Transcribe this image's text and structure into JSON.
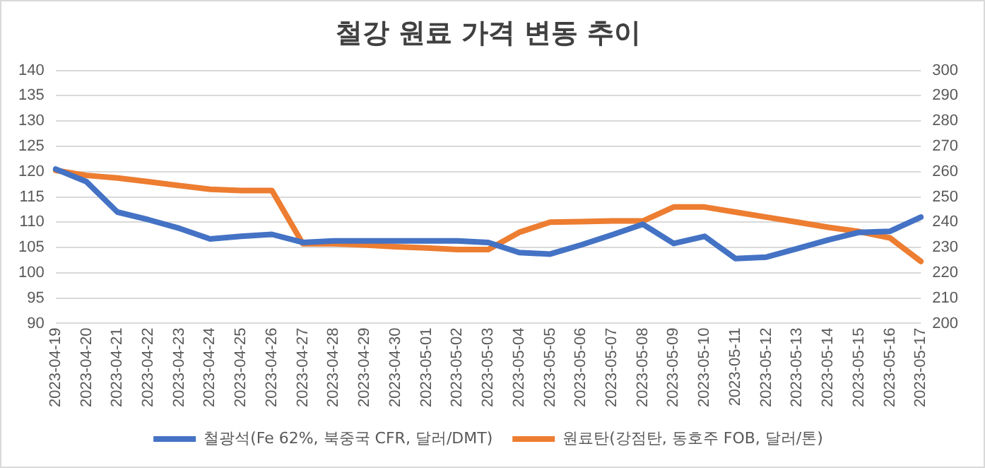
{
  "chart_data": {
    "type": "line",
    "title": "철강 원료 가격 변동 추이",
    "categories": [
      "2023-04-19",
      "2023-04-20",
      "2023-04-21",
      "2023-04-22",
      "2023-04-23",
      "2023-04-24",
      "2023-04-25",
      "2023-04-26",
      "2023-04-27",
      "2023-04-28",
      "2023-04-29",
      "2023-04-30",
      "2023-05-01",
      "2023-05-02",
      "2023-05-03",
      "2023-05-04",
      "2023-05-05",
      "2023-05-06",
      "2023-05-07",
      "2023-05-08",
      "2023-05-09",
      "2023-05-10",
      "2023-05-11",
      "2023-05-12",
      "2023-05-13",
      "2023-05-14",
      "2023-05-15",
      "2023-05-16",
      "2023-05-17"
    ],
    "series": [
      {
        "name": "철광석(Fe 62%, 북중국 CFR, 달러/DMT)",
        "color": "#4472c4",
        "values": [
          120.5,
          118,
          112,
          110.5,
          108.8,
          106.7,
          107.2,
          107.6,
          106,
          106.3,
          106.3,
          106.3,
          106.3,
          106.3,
          106,
          104,
          103.7,
          105.5,
          107.5,
          109.6,
          105.8,
          107.2,
          102.8,
          103.1,
          104.8,
          106.5,
          108,
          108.2,
          111
        ]
      },
      {
        "name": "원료탄(강점탄, 동호주 FOB, 달러/톤)",
        "color": "#ed7d31",
        "axis": "y2",
        "values": [
          260.5,
          258.5,
          257.5,
          256,
          254.5,
          253,
          252.5,
          252.5,
          231.5,
          231.5,
          231,
          230.3,
          229.8,
          229.2,
          229.2,
          236,
          240,
          240.2,
          240.5,
          240.5,
          246,
          246,
          244,
          242,
          240,
          238,
          236.3,
          233.8,
          224.5
        ]
      }
    ],
    "ylim": [
      90,
      140
    ],
    "yticks": [
      90,
      95,
      100,
      105,
      110,
      115,
      120,
      125,
      130,
      135,
      140
    ],
    "y2lim": [
      200,
      300
    ],
    "y2ticks": [
      200,
      210,
      220,
      230,
      240,
      250,
      260,
      270,
      280,
      290,
      300
    ],
    "grid": "y",
    "legend": "bottom",
    "marker": "none",
    "line_style": "solid"
  }
}
